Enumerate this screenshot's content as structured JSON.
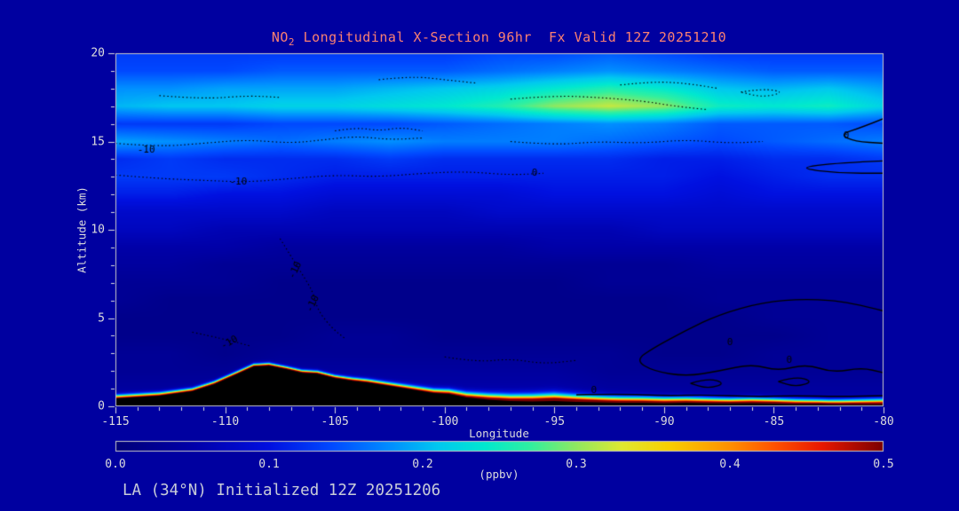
{
  "colors": {
    "background": "#0000A0",
    "title": "#FA8072",
    "axis_text": "#DCDCDC",
    "annotation_text": "#C8CCD8",
    "contour": "#000000",
    "terrain": "#000000",
    "frame": "#C8C8C8"
  },
  "chart_data": {
    "type": "heatmap",
    "title": "NO2 Longitudinal X-Section 96hr  Fx Valid 12Z 20251210",
    "title_parts": {
      "prefix": "NO",
      "sub": "2",
      "rest": " Longitudinal X-Section 96hr  Fx Valid 12Z 20251210"
    },
    "annotation": "LA (34°N) Initialized 12Z 20251206",
    "x_axis": {
      "label": "Longitude",
      "range": [
        -115,
        -80
      ],
      "ticks": [
        -115,
        -110,
        -105,
        -100,
        -95,
        -90,
        -85,
        -80
      ],
      "minor_step": 1
    },
    "y_axis": {
      "label": "Altitude (km)",
      "range": [
        0,
        20
      ],
      "ticks": [
        0,
        5,
        10,
        15,
        20
      ],
      "minor_step": 1
    },
    "colorbar": {
      "label": "(ppbv)",
      "min": 0.0,
      "max": 0.5,
      "ticks": [
        "0.0",
        "0.1",
        "0.2",
        "0.3",
        "0.4",
        "0.5"
      ]
    },
    "colormap": [
      [
        0.0,
        "#000078"
      ],
      [
        0.05,
        "#0000A8"
      ],
      [
        0.1,
        "#0010E0"
      ],
      [
        0.14,
        "#0048FF"
      ],
      [
        0.18,
        "#0090FF"
      ],
      [
        0.21,
        "#00C8F0"
      ],
      [
        0.24,
        "#00E8D0"
      ],
      [
        0.27,
        "#30F0A0"
      ],
      [
        0.3,
        "#90E860"
      ],
      [
        0.33,
        "#E0E830"
      ],
      [
        0.36,
        "#F8D000"
      ],
      [
        0.4,
        "#FF9000"
      ],
      [
        0.43,
        "#FF5000"
      ],
      [
        0.46,
        "#E81800"
      ],
      [
        0.5,
        "#7A0000"
      ]
    ],
    "grid": {
      "lon": [
        -115,
        -112.5,
        -110,
        -107.5,
        -105,
        -102.5,
        -100,
        -97.5,
        -95,
        -92.5,
        -90,
        -87.5,
        -85,
        -82.5,
        -80
      ],
      "alt": [
        0,
        1,
        2,
        3,
        4,
        5,
        6,
        7,
        8,
        9,
        10,
        11,
        12,
        13,
        14,
        15,
        16,
        17,
        18,
        19,
        20
      ],
      "values": [
        [
          0.05,
          0.05,
          0.05,
          0.05,
          0.05,
          0.05,
          0.06,
          0.06,
          0.06,
          0.05,
          0.05,
          0.05,
          0.05,
          0.05,
          0.05
        ],
        [
          0.04,
          0.04,
          0.04,
          0.04,
          0.04,
          0.05,
          0.05,
          0.05,
          0.05,
          0.04,
          0.04,
          0.04,
          0.04,
          0.04,
          0.04
        ],
        [
          0.03,
          0.03,
          0.03,
          0.04,
          0.04,
          0.04,
          0.04,
          0.04,
          0.04,
          0.03,
          0.03,
          0.03,
          0.03,
          0.03,
          0.03
        ],
        [
          0.03,
          0.03,
          0.02,
          0.03,
          0.03,
          0.03,
          0.03,
          0.03,
          0.03,
          0.03,
          0.02,
          0.02,
          0.03,
          0.03,
          0.03
        ],
        [
          0.02,
          0.02,
          0.02,
          0.02,
          0.03,
          0.03,
          0.02,
          0.02,
          0.02,
          0.02,
          0.02,
          0.02,
          0.02,
          0.03,
          0.03
        ],
        [
          0.02,
          0.02,
          0.02,
          0.02,
          0.02,
          0.02,
          0.02,
          0.02,
          0.02,
          0.02,
          0.02,
          0.02,
          0.03,
          0.03,
          0.03
        ],
        [
          0.03,
          0.02,
          0.02,
          0.02,
          0.02,
          0.02,
          0.02,
          0.02,
          0.02,
          0.02,
          0.02,
          0.03,
          0.03,
          0.03,
          0.03
        ],
        [
          0.03,
          0.03,
          0.03,
          0.02,
          0.02,
          0.02,
          0.02,
          0.02,
          0.02,
          0.03,
          0.03,
          0.03,
          0.03,
          0.03,
          0.03
        ],
        [
          0.04,
          0.04,
          0.03,
          0.03,
          0.03,
          0.03,
          0.03,
          0.03,
          0.03,
          0.03,
          0.03,
          0.04,
          0.04,
          0.04,
          0.04
        ],
        [
          0.05,
          0.05,
          0.05,
          0.04,
          0.04,
          0.04,
          0.04,
          0.04,
          0.05,
          0.05,
          0.05,
          0.05,
          0.05,
          0.05,
          0.05
        ],
        [
          0.07,
          0.07,
          0.06,
          0.06,
          0.06,
          0.06,
          0.06,
          0.06,
          0.06,
          0.06,
          0.07,
          0.07,
          0.07,
          0.07,
          0.07
        ],
        [
          0.08,
          0.08,
          0.08,
          0.08,
          0.07,
          0.07,
          0.07,
          0.08,
          0.08,
          0.08,
          0.08,
          0.08,
          0.08,
          0.08,
          0.08
        ],
        [
          0.11,
          0.11,
          0.1,
          0.1,
          0.09,
          0.09,
          0.09,
          0.09,
          0.1,
          0.1,
          0.1,
          0.09,
          0.1,
          0.1,
          0.1
        ],
        [
          0.13,
          0.13,
          0.13,
          0.12,
          0.11,
          0.11,
          0.11,
          0.11,
          0.11,
          0.11,
          0.11,
          0.1,
          0.11,
          0.12,
          0.12
        ],
        [
          0.12,
          0.13,
          0.12,
          0.12,
          0.12,
          0.13,
          0.12,
          0.12,
          0.12,
          0.12,
          0.11,
          0.11,
          0.12,
          0.12,
          0.13
        ],
        [
          0.19,
          0.18,
          0.17,
          0.16,
          0.17,
          0.18,
          0.17,
          0.17,
          0.17,
          0.16,
          0.15,
          0.14,
          0.15,
          0.16,
          0.17
        ],
        [
          0.13,
          0.13,
          0.13,
          0.14,
          0.14,
          0.14,
          0.15,
          0.16,
          0.17,
          0.18,
          0.17,
          0.15,
          0.15,
          0.15,
          0.14
        ],
        [
          0.2,
          0.21,
          0.21,
          0.22,
          0.22,
          0.23,
          0.24,
          0.26,
          0.3,
          0.32,
          0.3,
          0.25,
          0.24,
          0.25,
          0.22
        ],
        [
          0.18,
          0.18,
          0.19,
          0.19,
          0.19,
          0.2,
          0.21,
          0.22,
          0.24,
          0.26,
          0.24,
          0.21,
          0.2,
          0.21,
          0.19
        ],
        [
          0.14,
          0.14,
          0.14,
          0.15,
          0.15,
          0.15,
          0.15,
          0.16,
          0.17,
          0.18,
          0.17,
          0.16,
          0.15,
          0.15,
          0.15
        ],
        [
          0.13,
          0.13,
          0.13,
          0.13,
          0.13,
          0.13,
          0.13,
          0.14,
          0.14,
          0.15,
          0.14,
          0.13,
          0.13,
          0.13,
          0.13
        ]
      ]
    },
    "surface_plume": {
      "amplitude": [
        0.44,
        0.46,
        0.5,
        0.5,
        0.48,
        0.46,
        0.46,
        0.5,
        0.55,
        0.52,
        0.5,
        0.5,
        0.52,
        0.5,
        0.55
      ],
      "thickness_km": [
        0.18,
        0.17,
        0.15,
        0.14,
        0.15,
        0.18,
        0.22,
        0.3,
        0.35,
        0.3,
        0.28,
        0.25,
        0.25,
        0.22,
        0.26
      ]
    },
    "terrain": {
      "lon": [
        -115,
        -113,
        -111.5,
        -110.5,
        -109.5,
        -108.7,
        -108,
        -107.2,
        -106.5,
        -105.8,
        -105,
        -104.2,
        -103.5,
        -102.5,
        -101.5,
        -100.5,
        -99.8,
        -99,
        -98,
        -97,
        -96,
        -95,
        -94,
        -93,
        -92,
        -91,
        -90,
        -89,
        -88,
        -87,
        -86,
        -85,
        -84,
        -83,
        -82,
        -81,
        -80
      ],
      "alt": [
        0.45,
        0.6,
        0.85,
        1.25,
        1.8,
        2.25,
        2.3,
        2.1,
        1.9,
        1.85,
        1.6,
        1.45,
        1.35,
        1.15,
        0.95,
        0.75,
        0.7,
        0.5,
        0.38,
        0.3,
        0.28,
        0.3,
        0.25,
        0.22,
        0.2,
        0.2,
        0.18,
        0.2,
        0.18,
        0.16,
        0.18,
        0.15,
        0.12,
        0.12,
        0.1,
        0.1,
        0.1
      ]
    },
    "contours": [
      {
        "style": "dotted",
        "points": [
          [
            -115,
            14.9
          ],
          [
            -113,
            14.7
          ],
          [
            -111,
            14.9
          ],
          [
            -109,
            15.1
          ],
          [
            -107,
            14.9
          ],
          [
            -105.5,
            15.1
          ],
          [
            -104,
            15.3
          ],
          [
            -102.5,
            15.1
          ],
          [
            -101,
            15.2
          ]
        ]
      },
      {
        "style": "dotted",
        "points": [
          [
            -115,
            13.1
          ],
          [
            -113,
            12.9
          ],
          [
            -111,
            12.8
          ],
          [
            -109,
            12.7
          ],
          [
            -107,
            12.9
          ],
          [
            -105,
            13.1
          ],
          [
            -103,
            13.0
          ],
          [
            -101,
            13.2
          ],
          [
            -99,
            13.3
          ],
          [
            -97,
            13.1
          ],
          [
            -95.5,
            13.2
          ]
        ]
      },
      {
        "style": "dotted",
        "points": [
          [
            -105,
            15.6
          ],
          [
            -104,
            15.8
          ],
          [
            -103,
            15.6
          ],
          [
            -102,
            15.8
          ],
          [
            -101,
            15.6
          ]
        ]
      },
      {
        "style": "dotted",
        "points": [
          [
            -107.5,
            9.5
          ],
          [
            -107,
            8.5
          ],
          [
            -106.5,
            7.5
          ],
          [
            -106,
            6.5
          ],
          [
            -105.8,
            5.5
          ],
          [
            -105.2,
            4.5
          ],
          [
            -104.5,
            3.8
          ]
        ]
      },
      {
        "style": "dotted",
        "points": [
          [
            -111.5,
            4.2
          ],
          [
            -110,
            3.8
          ],
          [
            -108.8,
            3.4
          ]
        ]
      },
      {
        "style": "dotted",
        "points": [
          [
            -97,
            17.4
          ],
          [
            -95,
            17.6
          ],
          [
            -93,
            17.5
          ],
          [
            -91,
            17.3
          ],
          [
            -89.5,
            17.0
          ],
          [
            -88,
            16.8
          ]
        ]
      },
      {
        "style": "dotted",
        "points": [
          [
            -103,
            18.5
          ],
          [
            -101.5,
            18.7
          ],
          [
            -100,
            18.5
          ],
          [
            -98.5,
            18.3
          ]
        ]
      },
      {
        "style": "dotted",
        "points": [
          [
            -92,
            18.2
          ],
          [
            -90.5,
            18.4
          ],
          [
            -89,
            18.3
          ],
          [
            -87.5,
            18.0
          ]
        ]
      },
      {
        "style": "dotted",
        "points": [
          [
            -100,
            2.8
          ],
          [
            -98.5,
            2.5
          ],
          [
            -97,
            2.7
          ],
          [
            -95.5,
            2.4
          ],
          [
            -94,
            2.6
          ]
        ]
      },
      {
        "style": "dotted",
        "points": [
          [
            -97,
            15.0
          ],
          [
            -95,
            14.8
          ],
          [
            -93,
            15.0
          ],
          [
            -91,
            14.9
          ],
          [
            -89,
            15.1
          ],
          [
            -87,
            14.9
          ],
          [
            -85.5,
            15.0
          ]
        ]
      },
      {
        "style": "dotted",
        "points": [
          [
            -113,
            17.6
          ],
          [
            -111,
            17.4
          ],
          [
            -109,
            17.6
          ],
          [
            -107.5,
            17.5
          ]
        ]
      },
      {
        "style": "dotted",
        "points": [
          [
            -86.5,
            17.8
          ],
          [
            -85.5,
            18.0
          ],
          [
            -84.5,
            17.8
          ],
          [
            -85.5,
            17.5
          ],
          [
            -86.5,
            17.8
          ]
        ]
      },
      {
        "style": "solid",
        "points": [
          [
            -80,
            16.3
          ],
          [
            -81,
            15.8
          ],
          [
            -82,
            15.4
          ],
          [
            -81.3,
            15.0
          ],
          [
            -80,
            14.9
          ]
        ]
      },
      {
        "style": "solid",
        "points": [
          [
            -80,
            13.9
          ],
          [
            -82,
            13.8
          ],
          [
            -84,
            13.5
          ],
          [
            -82,
            13.2
          ],
          [
            -80,
            13.2
          ]
        ]
      },
      {
        "style": "solid",
        "points": [
          [
            -80,
            5.4
          ],
          [
            -81.5,
            5.9
          ],
          [
            -83.5,
            6.1
          ],
          [
            -85.5,
            5.9
          ],
          [
            -87.5,
            5.2
          ],
          [
            -89,
            4.3
          ],
          [
            -90.5,
            3.3
          ],
          [
            -91.3,
            2.6
          ],
          [
            -90.5,
            2.0
          ],
          [
            -89,
            1.7
          ],
          [
            -87.5,
            2.0
          ],
          [
            -86,
            2.4
          ],
          [
            -84.8,
            2.0
          ],
          [
            -83.5,
            2.4
          ],
          [
            -82.3,
            1.9
          ],
          [
            -81,
            2.2
          ],
          [
            -80,
            1.9
          ]
        ]
      },
      {
        "style": "solid",
        "points": [
          [
            -88.8,
            1.3
          ],
          [
            -88,
            1.6
          ],
          [
            -87.2,
            1.3
          ],
          [
            -88,
            1.0
          ],
          [
            -88.8,
            1.3
          ]
        ]
      },
      {
        "style": "solid",
        "points": [
          [
            -84.8,
            1.4
          ],
          [
            -84,
            1.7
          ],
          [
            -83.2,
            1.4
          ],
          [
            -84,
            1.1
          ],
          [
            -84.8,
            1.4
          ]
        ]
      },
      {
        "style": "solid",
        "points": [
          [
            -94,
            0.65
          ],
          [
            -92,
            0.7
          ],
          [
            -90,
            0.6
          ],
          [
            -88,
            0.65
          ],
          [
            -86,
            0.55
          ],
          [
            -84,
            0.6
          ],
          [
            -82,
            0.55
          ],
          [
            -80,
            0.6
          ]
        ]
      }
    ],
    "contour_labels": [
      {
        "text": "-10",
        "lon": -113.6,
        "alt": 14.5,
        "rot": 0
      },
      {
        "text": "-10",
        "lon": -109.4,
        "alt": 12.7,
        "rot": 0
      },
      {
        "text": "-10",
        "lon": -106.8,
        "alt": 7.7,
        "rot": -65
      },
      {
        "text": "-10",
        "lon": -106.0,
        "alt": 5.8,
        "rot": -65
      },
      {
        "text": "-10",
        "lon": -109.8,
        "alt": 3.6,
        "rot": -30
      },
      {
        "text": "0",
        "lon": -95.9,
        "alt": 13.2,
        "rot": 0
      },
      {
        "text": "0",
        "lon": -81.7,
        "alt": 15.3,
        "rot": 0
      },
      {
        "text": "0",
        "lon": -87.0,
        "alt": 3.6,
        "rot": 0
      },
      {
        "text": "0",
        "lon": -84.3,
        "alt": 2.6,
        "rot": 0
      },
      {
        "text": "0",
        "lon": -93.2,
        "alt": 0.9,
        "rot": 0
      }
    ]
  }
}
